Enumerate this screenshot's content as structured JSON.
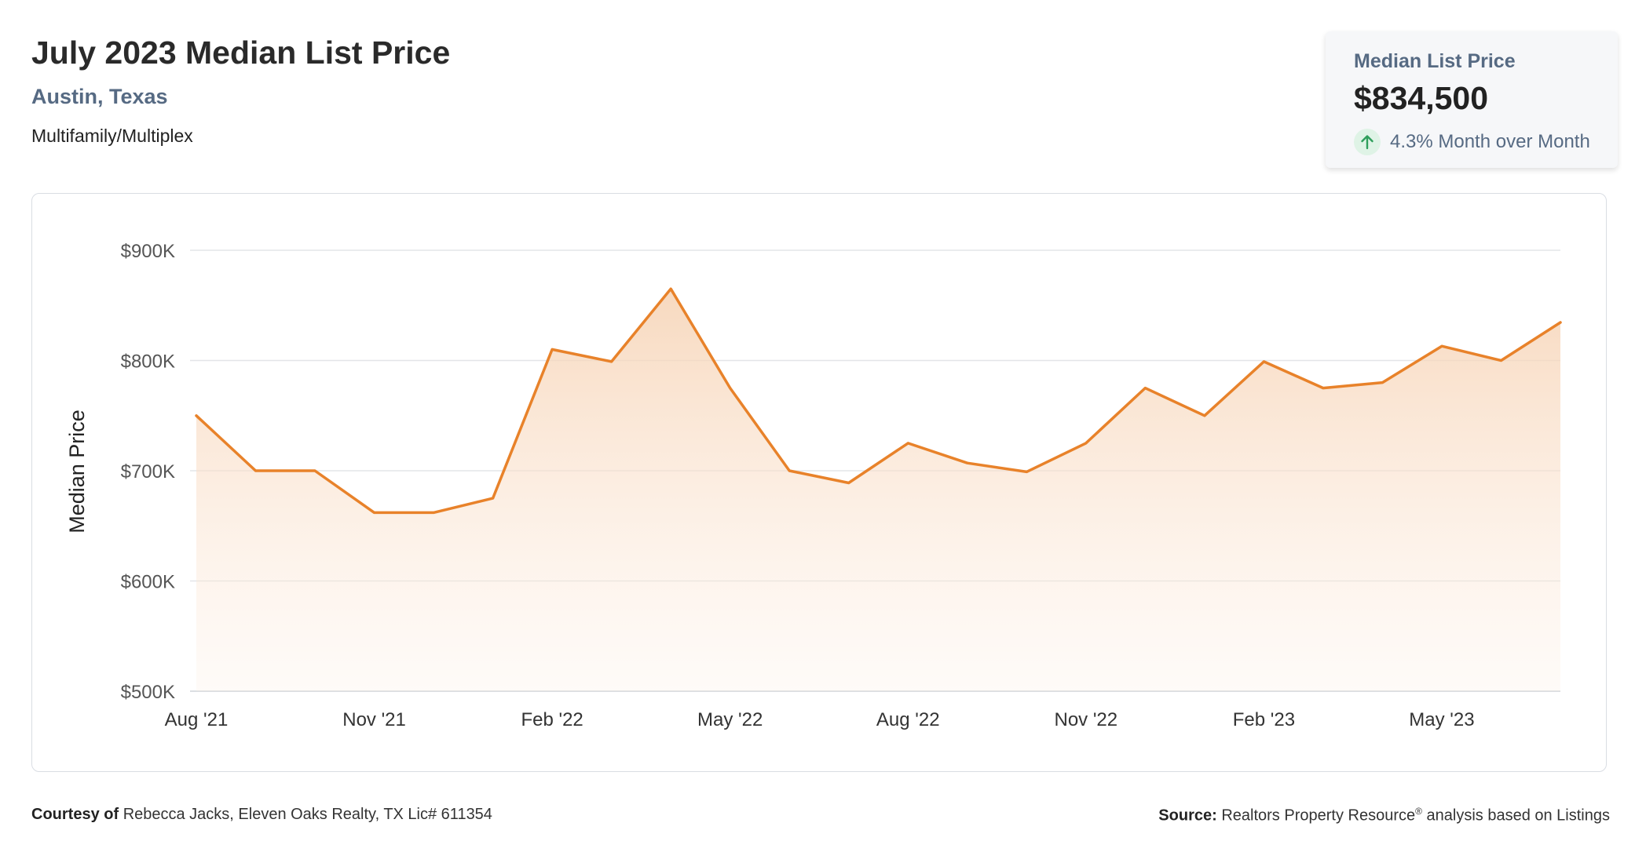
{
  "header": {
    "title": "July 2023 Median List Price",
    "location": "Austin, Texas",
    "property_type": "Multifamily/Multiplex"
  },
  "stat_card": {
    "label": "Median List Price",
    "value": "$834,500",
    "change": "4.3% Month over Month",
    "change_icon": "arrow-up-icon",
    "change_color": "#2e9e5b"
  },
  "footer": {
    "courtesy_label": "Courtesy of",
    "courtesy_text": "Rebecca Jacks, Eleven Oaks Realty, TX Lic# 611354",
    "source_label": "Source:",
    "source_text": "Realtors Property Resource",
    "source_mark": "®",
    "source_suffix": "analysis based on Listings"
  },
  "chart_data": {
    "type": "area",
    "ylabel": "Median Price",
    "ylim": [
      500000,
      900000
    ],
    "yticks": [
      500000,
      600000,
      700000,
      800000,
      900000
    ],
    "ytick_labels": [
      "$500K",
      "$600K",
      "$700K",
      "$800K",
      "$900K"
    ],
    "x": [
      "Aug '21",
      "Sep '21",
      "Oct '21",
      "Nov '21",
      "Dec '21",
      "Jan '22",
      "Feb '22",
      "Mar '22",
      "Apr '22",
      "May '22",
      "Jun '22",
      "Jul '22",
      "Aug '22",
      "Sep '22",
      "Oct '22",
      "Nov '22",
      "Dec '22",
      "Jan '23",
      "Feb '23",
      "Mar '23",
      "Apr '23",
      "May '23",
      "Jun '23",
      "Jul '23"
    ],
    "xtick_labels": [
      "Aug '21",
      "Nov '21",
      "Feb '22",
      "May '22",
      "Aug '22",
      "Nov '22",
      "Feb '23",
      "May '23"
    ],
    "values": [
      750000,
      700000,
      700000,
      662000,
      662000,
      675000,
      810000,
      799000,
      865000,
      775000,
      700000,
      689000,
      725000,
      707000,
      699000,
      725000,
      775000,
      750000,
      799000,
      775000,
      780000,
      813000,
      800000,
      834500
    ],
    "line_color": "#e8822a",
    "grid": true,
    "legend": "none"
  }
}
